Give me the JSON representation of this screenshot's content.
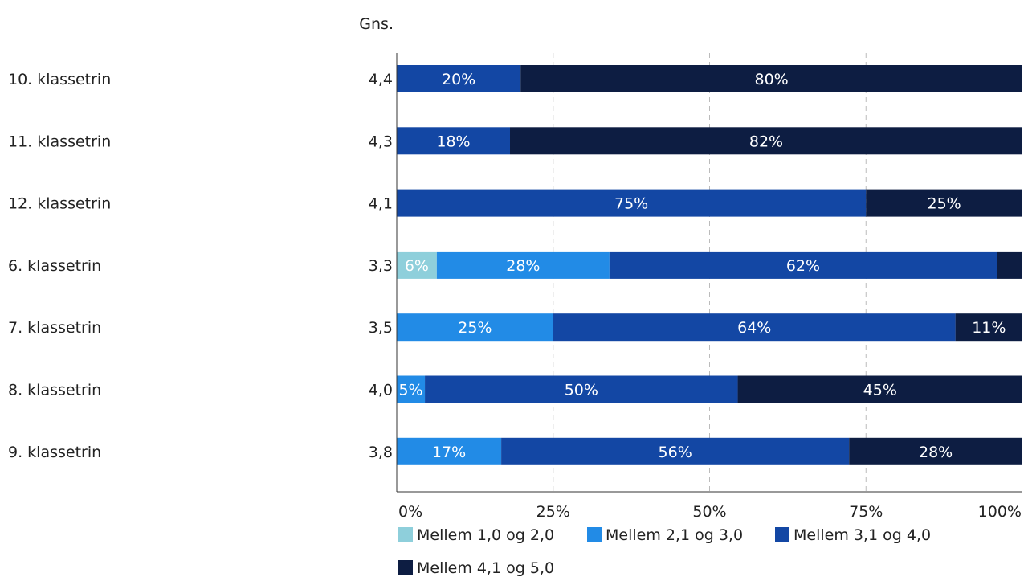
{
  "chart_data": {
    "type": "bar",
    "orientation": "horizontal",
    "stacked": true,
    "avg_header": "Gns.",
    "categories": [
      "10. klassetrin",
      "11. klassetrin",
      "12. klassetrin",
      "6. klassetrin",
      "7. klassetrin",
      "8. klassetrin",
      "9. klassetrin"
    ],
    "averages": [
      "4,4",
      "4,3",
      "4,1",
      "3,3",
      "3,5",
      "4,0",
      "3,8"
    ],
    "series": [
      {
        "name": "Mellem 1,0 og 2,0",
        "color": "#8ecfdb",
        "values": [
          0,
          0,
          0,
          6.4,
          0,
          0,
          0
        ],
        "labels": [
          "",
          "",
          "",
          "6%",
          "",
          "",
          ""
        ]
      },
      {
        "name": "Mellem 2,1 og 3,0",
        "color": "#228be6",
        "values": [
          0,
          0,
          0,
          27.6,
          25,
          4.5,
          16.7
        ],
        "labels": [
          "",
          "",
          "",
          "28%",
          "25%",
          "5%",
          "17%"
        ]
      },
      {
        "name": "Mellem 3,1 og 4,0",
        "color": "#1347a4",
        "values": [
          19.8,
          18.1,
          75,
          61.9,
          64.3,
          50,
          55.6
        ],
        "labels": [
          "20%",
          "18%",
          "75%",
          "62%",
          "64%",
          "50%",
          "56%"
        ]
      },
      {
        "name": "Mellem 4,1 og 5,0",
        "color": "#0d1d42",
        "values": [
          80.2,
          81.9,
          25,
          4.1,
          10.7,
          45.5,
          27.7
        ],
        "labels": [
          "80%",
          "82%",
          "25%",
          "",
          "11%",
          "45%",
          "28%"
        ]
      }
    ],
    "x_ticks": [
      "0%",
      "25%",
      "50%",
      "75%",
      "100%"
    ],
    "xlim": [
      0,
      100
    ],
    "grid": true,
    "legend_position": "bottom"
  }
}
